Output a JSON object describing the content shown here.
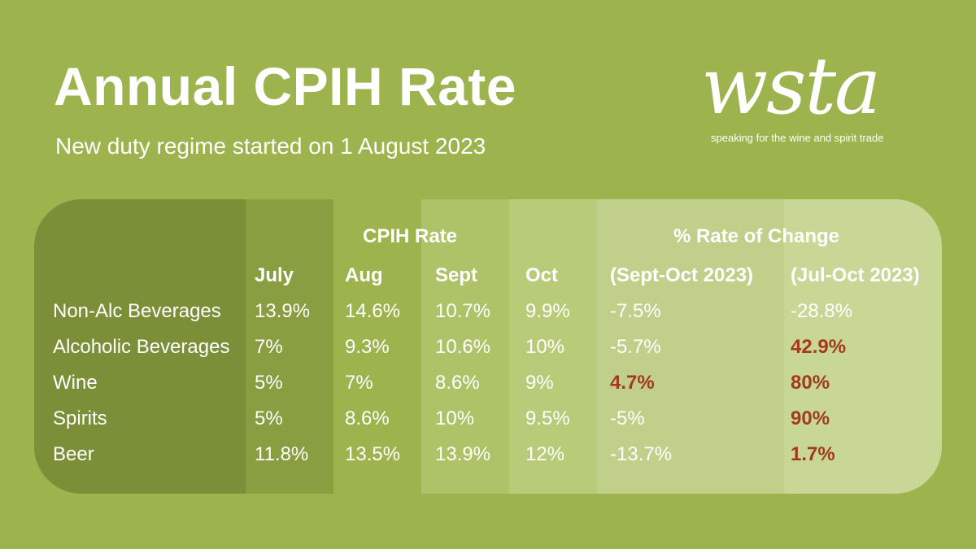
{
  "header": {
    "title": "Annual CPIH Rate",
    "subtitle": "New duty regime started on 1 August 2023"
  },
  "logo": {
    "word": "wsta",
    "tagline": "speaking for the wine and spirit trade"
  },
  "chart_data": {
    "type": "table",
    "group_headers": [
      "CPIH Rate",
      "% Rate of Change"
    ],
    "columns": [
      "July",
      "Aug",
      "Sept",
      "Oct",
      "(Sept-Oct 2023)",
      "(Jul-Oct 2023)"
    ],
    "rows": [
      {
        "label": "Non-Alc Beverages",
        "values": [
          "13.9%",
          "14.6%",
          "10.7%",
          "9.9%",
          "-7.5%",
          "-28.8%"
        ],
        "highlight": [
          false,
          false,
          false,
          false,
          false,
          false
        ]
      },
      {
        "label": "Alcoholic Beverages",
        "values": [
          "7%",
          "9.3%",
          "10.6%",
          "10%",
          "-5.7%",
          "42.9%"
        ],
        "highlight": [
          false,
          false,
          false,
          false,
          false,
          true
        ]
      },
      {
        "label": "Wine",
        "values": [
          "5%",
          "7%",
          "8.6%",
          "9%",
          "4.7%",
          "80%"
        ],
        "highlight": [
          false,
          false,
          false,
          false,
          true,
          true
        ]
      },
      {
        "label": "Spirits",
        "values": [
          "5%",
          "8.6%",
          "10%",
          "9.5%",
          "-5%",
          "90%"
        ],
        "highlight": [
          false,
          false,
          false,
          false,
          false,
          true
        ]
      },
      {
        "label": "Beer",
        "values": [
          "11.8%",
          "13.5%",
          "13.9%",
          "12%",
          "-13.7%",
          "1.7%"
        ],
        "highlight": [
          false,
          false,
          false,
          false,
          false,
          true
        ]
      }
    ],
    "colors": {
      "background": "#9db44e",
      "text": "#ffffff",
      "highlight": "#a33a1c"
    }
  }
}
